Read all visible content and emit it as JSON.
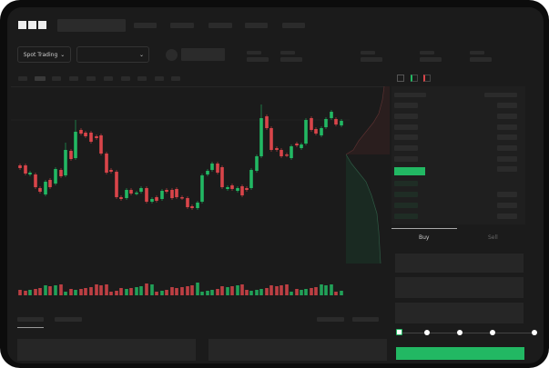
{
  "header": {
    "logo_text": "OKX"
  },
  "toolbar": {
    "market_selector": "Spot Trading",
    "market_chevron": "⌄",
    "pair_chevron": "⌄"
  },
  "trade_panel": {
    "tabs": [
      {
        "label": "Buy",
        "active": true
      },
      {
        "label": "Sell",
        "active": false
      }
    ],
    "slider_fraction": 0
  },
  "colors": {
    "up": "#22b863",
    "down": "#d9454a",
    "background": "#1b1b1b"
  }
}
